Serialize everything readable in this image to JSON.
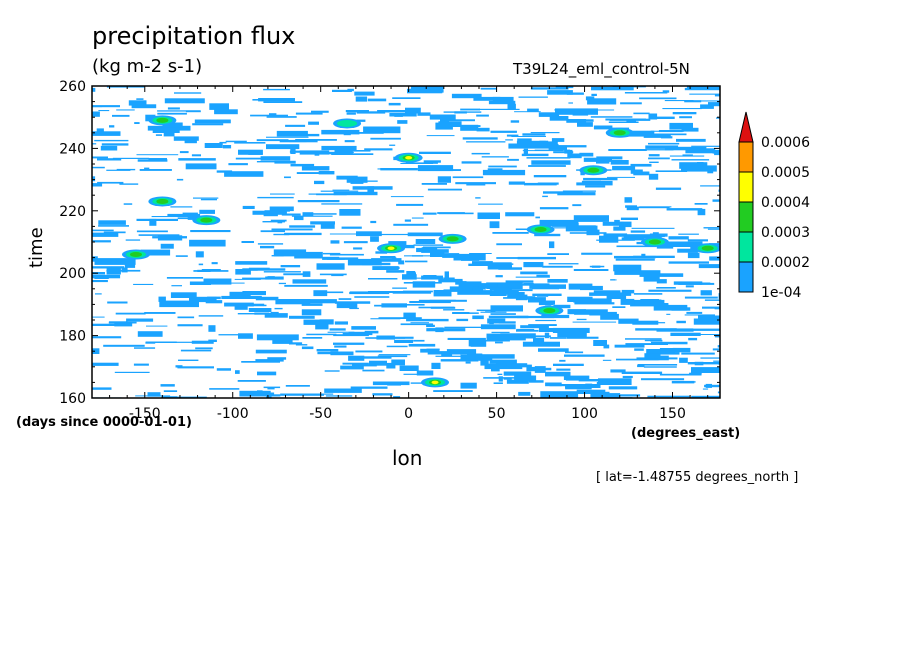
{
  "chart_data": {
    "type": "heatmap",
    "title": "precipitation flux",
    "units": "(kg m-2 s-1)",
    "run_label": "T39L24_eml_control-5N",
    "xlabel": "lon",
    "xunits": "(degrees_east)",
    "ylabel": "time",
    "yunits": "(days since 0000-01-01)",
    "annotation": "[ lat=-1.48755 degrees_north ]",
    "xlim": [
      -180,
      177
    ],
    "ylim": [
      160,
      260
    ],
    "x_ticks": [
      -150,
      -100,
      -50,
      0,
      50,
      100,
      150
    ],
    "y_ticks": [
      160,
      180,
      200,
      220,
      240,
      260
    ],
    "colorbar": {
      "levels": [
        "1e-04",
        "0.0002",
        "0.0003",
        "0.0004",
        "0.0005",
        "0.0006"
      ],
      "colors": [
        "#1aa3ff",
        "#00e69e",
        "#22cc22",
        "#ffff00",
        "#ff9900",
        "#dd1111"
      ]
    },
    "features": [
      {
        "lon": 0,
        "time": 237,
        "level": 3
      },
      {
        "lon": -140,
        "time": 223,
        "level": 2
      },
      {
        "lon": -115,
        "time": 217,
        "level": 2
      },
      {
        "lon": -155,
        "time": 206,
        "level": 2
      },
      {
        "lon": -10,
        "time": 208,
        "level": 3
      },
      {
        "lon": 25,
        "time": 211,
        "level": 2
      },
      {
        "lon": 75,
        "time": 214,
        "level": 2
      },
      {
        "lon": 120,
        "time": 245,
        "level": 2
      },
      {
        "lon": 105,
        "time": 233,
        "level": 2
      },
      {
        "lon": 170,
        "time": 208,
        "level": 2
      },
      {
        "lon": 140,
        "time": 210,
        "level": 2
      },
      {
        "lon": 80,
        "time": 188,
        "level": 2
      },
      {
        "lon": 15,
        "time": 165,
        "level": 3
      },
      {
        "lon": -140,
        "time": 249,
        "level": 2
      },
      {
        "lon": -35,
        "time": 248,
        "level": 1
      }
    ],
    "grid": false
  }
}
